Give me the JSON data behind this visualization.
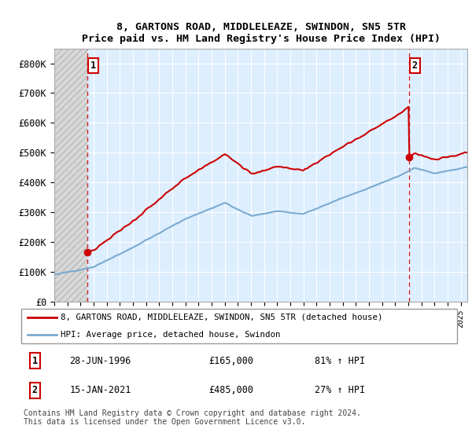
{
  "title": "8, GARTONS ROAD, MIDDLELEAZE, SWINDON, SN5 5TR",
  "subtitle": "Price paid vs. HM Land Registry's House Price Index (HPI)",
  "ylim": [
    0,
    850000
  ],
  "yticks": [
    0,
    100000,
    200000,
    300000,
    400000,
    500000,
    600000,
    700000,
    800000
  ],
  "ytick_labels": [
    "£0",
    "£100K",
    "£200K",
    "£300K",
    "£400K",
    "£500K",
    "£600K",
    "£700K",
    "£800K"
  ],
  "xlim_start": 1994,
  "xlim_end": 2025.5,
  "sale1_date": 1996.49,
  "sale1_price": 165000,
  "sale2_date": 2021.04,
  "sale2_price": 485000,
  "line_color_property": "#cc0000",
  "line_color_hpi": "#7aaad0",
  "bg_color": "#ddeeff",
  "hatch_facecolor": "#d8d8d8",
  "hatch_edgecolor": "#bbbbbb",
  "grid_color": "#ffffff",
  "legend_label_property": "8, GARTONS ROAD, MIDDLELEAZE, SWINDON, SN5 5TR (detached house)",
  "legend_label_hpi": "HPI: Average price, detached house, Swindon",
  "annotation1_date": "28-JUN-1996",
  "annotation1_price": "£165,000",
  "annotation1_hpi": "81% ↑ HPI",
  "annotation2_date": "15-JAN-2021",
  "annotation2_price": "£485,000",
  "annotation2_hpi": "27% ↑ HPI",
  "footer": "Contains HM Land Registry data © Crown copyright and database right 2024.\nThis data is licensed under the Open Government Licence v3.0."
}
